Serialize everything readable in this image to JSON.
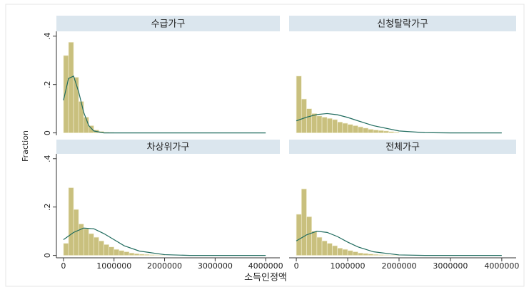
{
  "ylabel": "Fraction",
  "xlabel": "소득인정액",
  "chart_data": [
    {
      "type": "histogram",
      "title": "수급가구",
      "color": "#c9c07e",
      "line_color": "#1f6b5e",
      "bins": [
        0,
        100000,
        200000,
        300000,
        400000,
        500000,
        600000,
        700000,
        800000,
        900000,
        1000000,
        1100000,
        1200000,
        1300000,
        1400000,
        1500000,
        1600000,
        1700000,
        1800000,
        1900000,
        2000000
      ],
      "values": [
        0.32,
        0.375,
        0.23,
        0.13,
        0.065,
        0.03,
        0.012,
        0.006,
        0.003,
        0.002,
        0.001,
        0,
        0,
        0,
        0,
        0,
        0,
        0,
        0,
        0
      ],
      "density_x": [
        0,
        100000,
        200000,
        300000,
        400000,
        500000,
        600000,
        800000,
        1000000,
        2000000,
        3000000,
        4000000
      ],
      "density": [
        0.135,
        0.225,
        0.235,
        0.17,
        0.085,
        0.03,
        0.008,
        0,
        0,
        0,
        0,
        0
      ],
      "xlim": [
        -140000,
        4280000
      ],
      "ylim": [
        -0.01,
        0.42
      ],
      "yticks": [
        {
          "value": 0,
          "label": "0"
        },
        {
          "value": 0.2,
          "label": ".2"
        },
        {
          "value": 0.4,
          "label": ".4"
        }
      ]
    },
    {
      "type": "histogram",
      "title": "신청탈락가구",
      "color": "#c9c07e",
      "line_color": "#1f6b5e",
      "bins": [
        0,
        100000,
        200000,
        300000,
        400000,
        500000,
        600000,
        700000,
        800000,
        900000,
        1000000,
        1100000,
        1200000,
        1300000,
        1400000,
        1500000,
        1600000,
        1700000,
        1800000,
        1900000,
        2000000
      ],
      "values": [
        0.235,
        0.14,
        0.1,
        0.08,
        0.07,
        0.065,
        0.06,
        0.055,
        0.045,
        0.04,
        0.035,
        0.03,
        0.025,
        0.02,
        0.015,
        0.012,
        0.01,
        0.008,
        0.005,
        0.003
      ],
      "density_x": [
        0,
        200000,
        400000,
        600000,
        800000,
        1000000,
        1200000,
        1500000,
        2000000,
        2500000,
        3000000,
        4000000
      ],
      "density": [
        0.05,
        0.065,
        0.076,
        0.08,
        0.075,
        0.064,
        0.05,
        0.03,
        0.008,
        0.001,
        0,
        0
      ],
      "xlim": [
        -140000,
        4280000
      ],
      "ylim": [
        -0.01,
        0.42
      ]
    },
    {
      "type": "histogram",
      "title": "차상위가구",
      "color": "#c9c07e",
      "line_color": "#1f6b5e",
      "bins": [
        0,
        100000,
        200000,
        300000,
        400000,
        500000,
        600000,
        700000,
        800000,
        900000,
        1000000,
        1100000,
        1200000,
        1300000,
        1400000,
        1500000,
        1600000,
        1700000,
        1800000,
        1900000,
        2000000
      ],
      "values": [
        0.05,
        0.28,
        0.19,
        0.13,
        0.11,
        0.09,
        0.075,
        0.06,
        0.045,
        0.035,
        0.025,
        0.02,
        0.015,
        0.01,
        0.007,
        0.005,
        0.004,
        0.003,
        0.002,
        0.001
      ],
      "density_x": [
        0,
        200000,
        400000,
        600000,
        800000,
        1000000,
        1200000,
        1500000,
        2000000,
        2500000,
        3000000,
        4000000
      ],
      "density": [
        0.065,
        0.095,
        0.113,
        0.11,
        0.09,
        0.065,
        0.04,
        0.018,
        0.003,
        0,
        0,
        0
      ],
      "xlim": [
        -140000,
        4280000
      ],
      "ylim": [
        -0.01,
        0.42
      ],
      "xticks": [
        0,
        1000000,
        2000000,
        3000000,
        4000000
      ],
      "yticks": [
        {
          "value": 0,
          "label": "0"
        },
        {
          "value": 0.2,
          "label": ".2"
        },
        {
          "value": 0.4,
          "label": ".4"
        }
      ]
    },
    {
      "type": "histogram",
      "title": "전체가구",
      "color": "#c9c07e",
      "line_color": "#1f6b5e",
      "bins": [
        0,
        100000,
        200000,
        300000,
        400000,
        500000,
        600000,
        700000,
        800000,
        900000,
        1000000,
        1100000,
        1200000,
        1300000,
        1400000,
        1500000,
        1600000,
        1700000,
        1800000,
        1900000,
        2000000
      ],
      "values": [
        0.17,
        0.275,
        0.16,
        0.1,
        0.075,
        0.06,
        0.05,
        0.04,
        0.03,
        0.025,
        0.02,
        0.015,
        0.01,
        0.008,
        0.006,
        0.004,
        0.003,
        0.002,
        0.001,
        0.001
      ],
      "density_x": [
        0,
        200000,
        400000,
        600000,
        800000,
        1000000,
        1200000,
        1500000,
        2000000,
        2500000,
        3000000,
        4000000
      ],
      "density": [
        0.06,
        0.085,
        0.1,
        0.095,
        0.078,
        0.055,
        0.035,
        0.015,
        0.002,
        0,
        0,
        0
      ],
      "xlim": [
        -140000,
        4280000
      ],
      "ylim": [
        -0.01,
        0.42
      ],
      "xticks": [
        0,
        1000000,
        2000000,
        3000000,
        4000000
      ]
    }
  ]
}
